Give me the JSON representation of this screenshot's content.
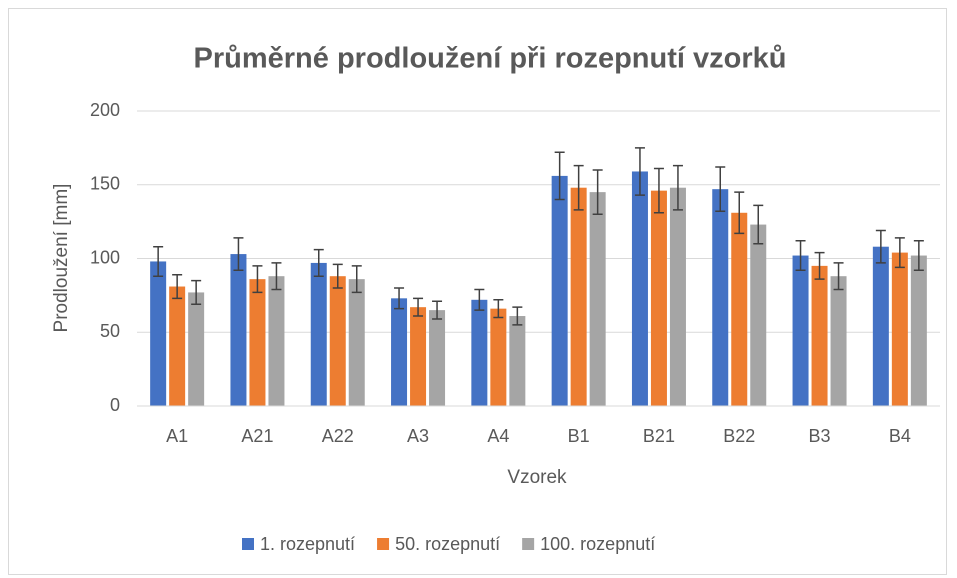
{
  "chart_data": {
    "type": "bar",
    "title": "Průměrné prodloužení při rozepnutí vzorků",
    "x_label": "Vzorek",
    "y_label": "Prodloužení [mm]",
    "categories": [
      "A1",
      "A21",
      "A22",
      "A3",
      "A4",
      "B1",
      "B21",
      "B22",
      "B3",
      "B4"
    ],
    "series": [
      {
        "name": "1. rozepnutí",
        "color": "#4472c4",
        "values": [
          98,
          103,
          97,
          73,
          72,
          156,
          159,
          147,
          102,
          108
        ],
        "errors": [
          10,
          11,
          9,
          7,
          7,
          16,
          16,
          15,
          10,
          11
        ]
      },
      {
        "name": "50. rozepnutí",
        "color": "#ed7d31",
        "values": [
          81,
          86,
          88,
          67,
          66,
          148,
          146,
          131,
          95,
          104
        ],
        "errors": [
          8,
          9,
          8,
          6,
          6,
          15,
          15,
          14,
          9,
          10
        ]
      },
      {
        "name": "100. rozepnutí",
        "color": "#a5a5a5",
        "values": [
          77,
          88,
          86,
          65,
          61,
          145,
          148,
          123,
          88,
          102
        ],
        "errors": [
          8,
          9,
          9,
          6,
          6,
          15,
          15,
          13,
          9,
          10
        ]
      }
    ],
    "ylim": [
      0,
      200
    ],
    "yticks": [
      0,
      50,
      100,
      150,
      200
    ],
    "grid": true,
    "legend": "bottom"
  }
}
